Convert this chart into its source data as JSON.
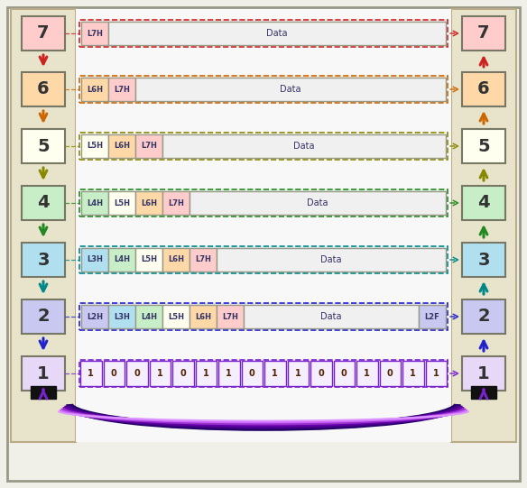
{
  "layer_colors": {
    "7": "#ffcccc",
    "6": "#ffd8a8",
    "5": "#fffff0",
    "4": "#c8eec8",
    "3": "#b0e0f0",
    "2": "#c8c8f0",
    "1": "#e8d8f8"
  },
  "arrow_colors": {
    "7": "#cc2222",
    "6": "#cc6600",
    "5": "#888800",
    "4": "#228822",
    "3": "#008888",
    "2": "#2222cc",
    "1": "#7722cc"
  },
  "header_colors": {
    "L7H": "#ffcccc",
    "L6H": "#ffd8a8",
    "L5H": "#fffff0",
    "L4H": "#c8eec8",
    "L3H": "#b0e0f0",
    "L2H": "#c8c8f0",
    "L2F": "#c8c8f0",
    "Data": "#f0f0f0"
  },
  "pdu_configs": [
    {
      "layer": 7,
      "headers": [
        "L7H",
        "Data"
      ]
    },
    {
      "layer": 6,
      "headers": [
        "L6H",
        "L7H",
        "Data"
      ]
    },
    {
      "layer": 5,
      "headers": [
        "L5H",
        "L6H",
        "L7H",
        "Data"
      ]
    },
    {
      "layer": 4,
      "headers": [
        "L4H",
        "L5H",
        "L6H",
        "L7H",
        "Data"
      ]
    },
    {
      "layer": 3,
      "headers": [
        "L3H",
        "L4H",
        "L5H",
        "L6H",
        "L7H",
        "Data"
      ]
    },
    {
      "layer": 2,
      "headers": [
        "L2H",
        "L3H",
        "L4H",
        "L5H",
        "L6H",
        "L7H",
        "Data",
        "L2F"
      ]
    }
  ],
  "bit_stream": [
    1,
    0,
    0,
    1,
    0,
    1,
    1,
    0,
    1,
    1,
    0,
    0,
    1,
    0,
    1,
    1
  ],
  "bg_color": "#f0efe8",
  "panel_color": "#e8e4cc",
  "inner_bg": "#f8f8f8"
}
